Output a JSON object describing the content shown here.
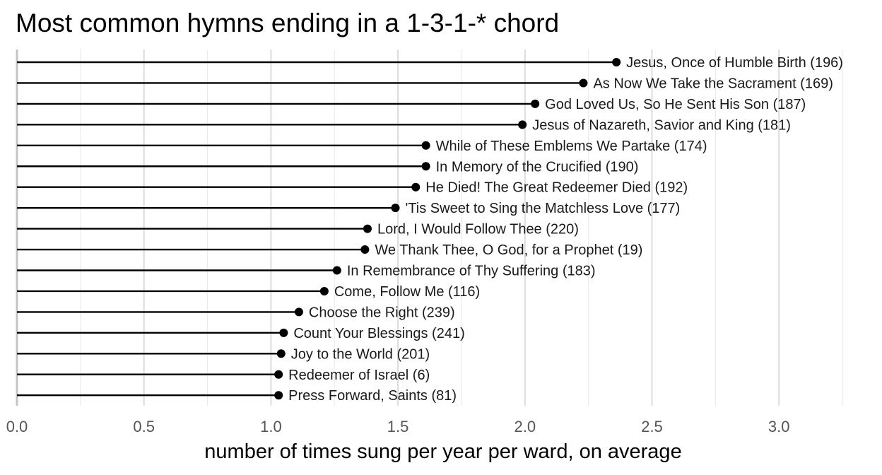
{
  "chart_data": {
    "type": "lollipop",
    "title": "Most common hymns ending in a 1-3-1-* chord",
    "xlabel": "number of times sung per year per ward, on average",
    "ylabel": "",
    "xlim": [
      0,
      3.25
    ],
    "xticks": [
      0.0,
      0.5,
      1.0,
      1.5,
      2.0,
      2.5,
      3.0
    ],
    "xtick_labels": [
      "0.0",
      "0.5",
      "1.0",
      "1.5",
      "2.0",
      "2.5",
      "3.0"
    ],
    "grid": "vertical",
    "categories": [
      "Jesus, Once of Humble Birth (196)",
      "As Now We Take the Sacrament (169)",
      "God Loved Us, So He Sent His Son (187)",
      "Jesus of Nazareth, Savior and King (181)",
      "While of These Emblems We Partake (174)",
      "In Memory of the Crucified (190)",
      "He Died! The Great Redeemer Died (192)",
      "'Tis Sweet to Sing the Matchless Love (177)",
      "Lord, I Would Follow Thee (220)",
      "We Thank Thee, O God, for a Prophet (19)",
      "In Remembrance of Thy Suffering (183)",
      "Come, Follow Me (116)",
      "Choose the Right (239)",
      "Count Your Blessings (241)",
      "Joy to the World (201)",
      "Redeemer of Israel (6)",
      "Press Forward, Saints (81)"
    ],
    "values": [
      2.36,
      2.23,
      2.04,
      1.99,
      1.61,
      1.61,
      1.57,
      1.49,
      1.38,
      1.37,
      1.26,
      1.21,
      1.11,
      1.05,
      1.04,
      1.03,
      1.03
    ]
  }
}
